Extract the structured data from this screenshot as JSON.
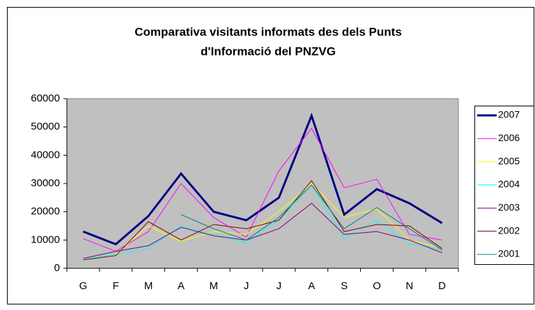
{
  "chart_data": {
    "type": "line",
    "title": [
      "Comparativa visitants informats des dels Punts",
      "d'Informació del PNZVG"
    ],
    "categories": [
      "G",
      "F",
      "M",
      "A",
      "M",
      "J",
      "J",
      "A",
      "S",
      "O",
      "N",
      "D"
    ],
    "ylim": [
      0,
      60000
    ],
    "yticks": [
      0,
      10000,
      20000,
      30000,
      40000,
      50000,
      60000
    ],
    "grid": false,
    "plot_background": "#c0c0c0",
    "legend": "right",
    "series": [
      {
        "name": "2007",
        "color": "#000080",
        "line_width": 3,
        "values": [
          13000,
          8500,
          18500,
          33500,
          20000,
          17000,
          25000,
          54000,
          19000,
          28000,
          23000,
          16000
        ]
      },
      {
        "name": "2006",
        "color": "#ff00ff",
        "line_width": 1,
        "values": [
          10500,
          6000,
          13000,
          30000,
          18000,
          11000,
          34500,
          49500,
          28500,
          31500,
          12000,
          10000
        ]
      },
      {
        "name": "2005",
        "color": "#ffff00",
        "line_width": 1,
        "values": [
          3500,
          5000,
          15000,
          9500,
          13000,
          12000,
          20000,
          30000,
          18000,
          21000,
          10000,
          7000
        ]
      },
      {
        "name": "2004",
        "color": "#00ffff",
        "line_width": 1,
        "values": [
          3500,
          5000,
          7000,
          15000,
          12000,
          9000,
          17000,
          29500,
          10500,
          17000,
          8500,
          7000
        ]
      },
      {
        "name": "2003",
        "color": "#800080",
        "line_width": 1,
        "values": [
          3500,
          6000,
          8000,
          14500,
          11500,
          10000,
          14000,
          23000,
          12000,
          13000,
          10000,
          5500
        ]
      },
      {
        "name": "2002",
        "color": "#800000",
        "line_width": 1,
        "values": [
          3000,
          4500,
          16500,
          10000,
          15500,
          14000,
          17000,
          31000,
          13000,
          15500,
          15000,
          7000
        ]
      },
      {
        "name": "2001",
        "color": "#008080",
        "line_width": 1,
        "values": [
          null,
          null,
          null,
          19000,
          14000,
          10000,
          18000,
          29500,
          14000,
          21500,
          14000,
          6500
        ]
      }
    ]
  }
}
